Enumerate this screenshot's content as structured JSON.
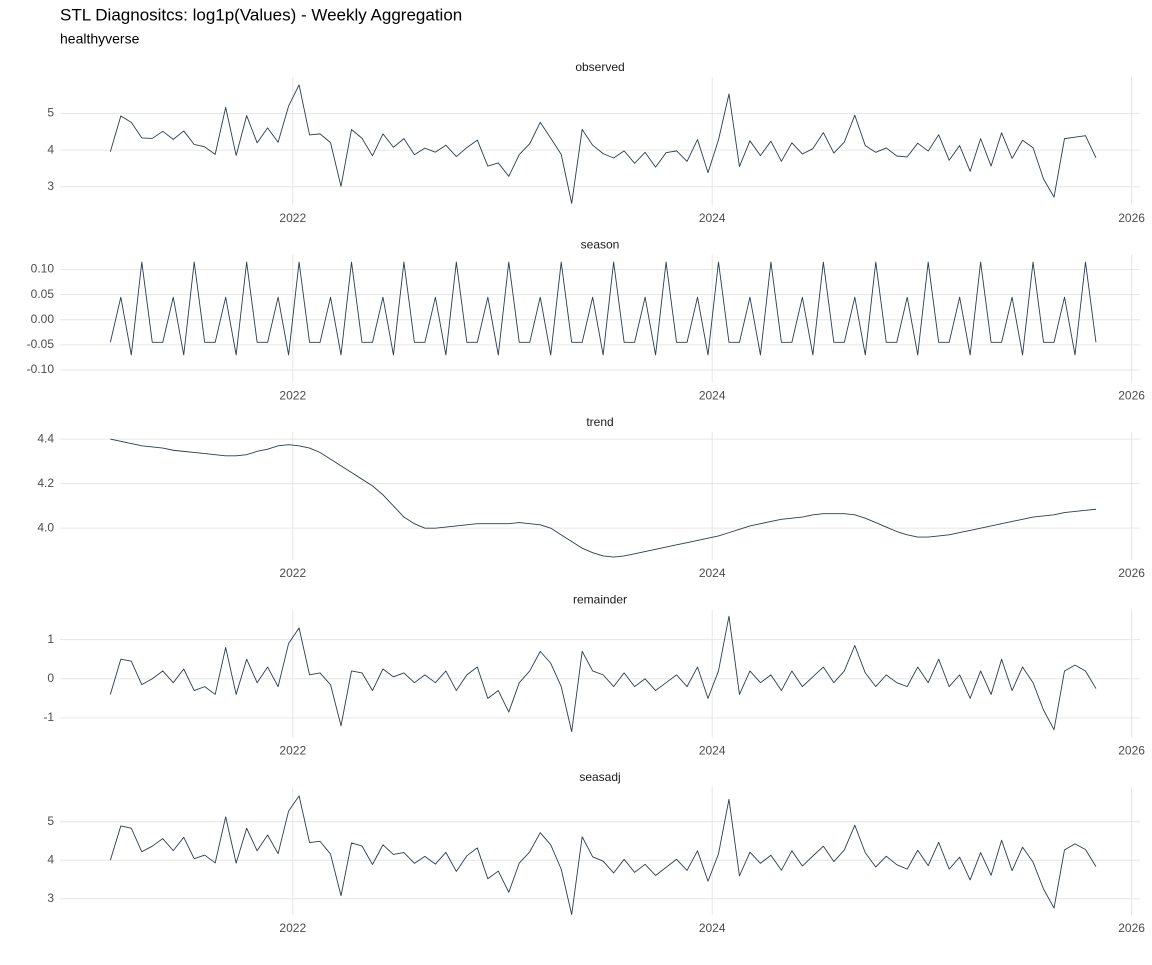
{
  "title": "STL Diagnositcs: log1p(Values) - Weekly Aggregation",
  "subtitle": "healthyverse",
  "chart_data": [
    {
      "type": "line",
      "title": "observed",
      "color": "#2c3e50",
      "grid": true,
      "xlim": [
        2020.89,
        2026.04
      ],
      "xticks": [
        2022,
        2024,
        2026
      ],
      "ylim": [
        2.5,
        6.0
      ],
      "yticks": [
        3,
        4,
        5
      ],
      "x": [
        2021.13,
        2021.18,
        2021.23,
        2021.28,
        2021.33,
        2021.38,
        2021.43,
        2021.48,
        2021.53,
        2021.58,
        2021.63,
        2021.68,
        2021.73,
        2021.78,
        2021.83,
        2021.88,
        2021.93,
        2021.98,
        2022.03,
        2022.08,
        2022.13,
        2022.18,
        2022.23,
        2022.28,
        2022.33,
        2022.38,
        2022.43,
        2022.48,
        2022.53,
        2022.58,
        2022.63,
        2022.68,
        2022.73,
        2022.78,
        2022.83,
        2022.88,
        2022.93,
        2022.98,
        2023.03,
        2023.08,
        2023.13,
        2023.18,
        2023.23,
        2023.28,
        2023.33,
        2023.38,
        2023.43,
        2023.48,
        2023.53,
        2023.58,
        2023.63,
        2023.68,
        2023.73,
        2023.78,
        2023.83,
        2023.88,
        2023.93,
        2023.98,
        2024.03,
        2024.08,
        2024.13,
        2024.18,
        2024.23,
        2024.28,
        2024.33,
        2024.38,
        2024.43,
        2024.48,
        2024.53,
        2024.58,
        2024.63,
        2024.68,
        2024.73,
        2024.78,
        2024.83,
        2024.88,
        2024.93,
        2024.98,
        2025.03,
        2025.08,
        2025.13,
        2025.18,
        2025.23,
        2025.28,
        2025.33,
        2025.38,
        2025.43,
        2025.48,
        2025.53,
        2025.58,
        2025.63,
        2025.68,
        2025.73,
        2025.78,
        2025.83
      ],
      "values": [
        3.955,
        4.935,
        4.76,
        4.335,
        4.32,
        4.515,
        4.295,
        4.525,
        4.155,
        4.09,
        3.885,
        5.17,
        3.855,
        4.945,
        4.2,
        4.61,
        4.215,
        5.205,
        5.785,
        4.415,
        4.445,
        4.205,
        3.01,
        4.565,
        4.325,
        3.845,
        4.445,
        4.08,
        4.315,
        3.875,
        4.055,
        3.945,
        4.135,
        3.825,
        4.07,
        4.275,
        3.565,
        3.65,
        3.285,
        3.88,
        4.175,
        4.76,
        4.33,
        3.885,
        2.545,
        4.565,
        4.135,
        3.905,
        3.785,
        3.98,
        3.64,
        3.94,
        3.535,
        3.93,
        3.98,
        3.69,
        4.29,
        3.385,
        4.28,
        5.535,
        3.55,
        4.255,
        3.85,
        4.245,
        3.695,
        4.2,
        3.895,
        4.04,
        4.48,
        3.92,
        4.22,
        4.955,
        4.125,
        3.94,
        4.06,
        3.84,
        3.815,
        4.19,
        3.975,
        4.42,
        3.725,
        4.125,
        3.42,
        4.315,
        3.565,
        4.475,
        3.775,
        4.27,
        4.065,
        3.21,
        2.715,
        4.315,
        4.355,
        4.395,
        3.79
      ]
    },
    {
      "type": "line",
      "title": "season",
      "color": "#2c3e50",
      "grid": true,
      "xlim": [
        2020.89,
        2026.04
      ],
      "xticks": [
        2022,
        2024,
        2026
      ],
      "ylim": [
        -0.125,
        0.13
      ],
      "yticks": [
        {
          "value": -0.1,
          "label": "-0.10"
        },
        -0.05,
        {
          "value": 0,
          "label": "0.00"
        },
        0.05,
        {
          "value": 0.1,
          "label": "0.10"
        }
      ],
      "x": [
        2021.13,
        2021.18,
        2021.23,
        2021.28,
        2021.33,
        2021.38,
        2021.43,
        2021.48,
        2021.53,
        2021.58,
        2021.63,
        2021.68,
        2021.73,
        2021.78,
        2021.83,
        2021.88,
        2021.93,
        2021.98,
        2022.03,
        2022.08,
        2022.13,
        2022.18,
        2022.23,
        2022.28,
        2022.33,
        2022.38,
        2022.43,
        2022.48,
        2022.53,
        2022.58,
        2022.63,
        2022.68,
        2022.73,
        2022.78,
        2022.83,
        2022.88,
        2022.93,
        2022.98,
        2023.03,
        2023.08,
        2023.13,
        2023.18,
        2023.23,
        2023.28,
        2023.33,
        2023.38,
        2023.43,
        2023.48,
        2023.53,
        2023.58,
        2023.63,
        2023.68,
        2023.73,
        2023.78,
        2023.83,
        2023.88,
        2023.93,
        2023.98,
        2024.03,
        2024.08,
        2024.13,
        2024.18,
        2024.23,
        2024.28,
        2024.33,
        2024.38,
        2024.43,
        2024.48,
        2024.53,
        2024.58,
        2024.63,
        2024.68,
        2024.73,
        2024.78,
        2024.83,
        2024.88,
        2024.93,
        2024.98,
        2025.03,
        2025.08,
        2025.13,
        2025.18,
        2025.23,
        2025.28,
        2025.33,
        2025.38,
        2025.43,
        2025.48,
        2025.53,
        2025.58,
        2025.63,
        2025.68,
        2025.73,
        2025.78,
        2025.83
      ],
      "values": [
        -0.045,
        0.045,
        -0.07,
        0.115,
        -0.045,
        -0.045,
        0.045,
        -0.07,
        0.115,
        -0.045,
        -0.045,
        0.045,
        -0.07,
        0.115,
        -0.045,
        -0.045,
        0.045,
        -0.07,
        0.115,
        -0.045,
        -0.045,
        0.045,
        -0.07,
        0.115,
        -0.045,
        -0.045,
        0.045,
        -0.07,
        0.115,
        -0.045,
        -0.045,
        0.045,
        -0.07,
        0.115,
        -0.045,
        -0.045,
        0.045,
        -0.07,
        0.115,
        -0.045,
        -0.045,
        0.045,
        -0.07,
        0.115,
        -0.045,
        -0.045,
        0.045,
        -0.07,
        0.115,
        -0.045,
        -0.045,
        0.045,
        -0.07,
        0.115,
        -0.045,
        -0.045,
        0.045,
        -0.07,
        0.115,
        -0.045,
        -0.045,
        0.045,
        -0.07,
        0.115,
        -0.045,
        -0.045,
        0.045,
        -0.07,
        0.115,
        -0.045,
        -0.045,
        0.045,
        -0.07,
        0.115,
        -0.045,
        -0.045,
        0.045,
        -0.07,
        0.115,
        -0.045,
        -0.045,
        0.045,
        -0.07,
        0.115,
        -0.045,
        -0.045,
        0.045,
        -0.07,
        0.115,
        -0.045,
        -0.045,
        0.045,
        -0.07,
        0.115,
        -0.045
      ]
    },
    {
      "type": "line",
      "title": "trend",
      "color": "#2c3e50",
      "grid": true,
      "xlim": [
        2020.89,
        2026.04
      ],
      "xticks": [
        2022,
        2024,
        2026
      ],
      "ylim": [
        3.857,
        4.432
      ],
      "yticks": [
        {
          "value": 4.0,
          "label": "4.0"
        },
        4.2,
        4.4
      ],
      "x": [
        2021.13,
        2021.18,
        2021.23,
        2021.28,
        2021.33,
        2021.38,
        2021.43,
        2021.48,
        2021.53,
        2021.58,
        2021.63,
        2021.68,
        2021.73,
        2021.78,
        2021.83,
        2021.88,
        2021.93,
        2021.98,
        2022.03,
        2022.08,
        2022.13,
        2022.18,
        2022.23,
        2022.28,
        2022.33,
        2022.38,
        2022.43,
        2022.48,
        2022.53,
        2022.58,
        2022.63,
        2022.68,
        2022.73,
        2022.78,
        2022.83,
        2022.88,
        2022.93,
        2022.98,
        2023.03,
        2023.08,
        2023.13,
        2023.18,
        2023.23,
        2023.28,
        2023.33,
        2023.38,
        2023.43,
        2023.48,
        2023.53,
        2023.58,
        2023.63,
        2023.68,
        2023.73,
        2023.78,
        2023.83,
        2023.88,
        2023.93,
        2023.98,
        2024.03,
        2024.08,
        2024.13,
        2024.18,
        2024.23,
        2024.28,
        2024.33,
        2024.38,
        2024.43,
        2024.48,
        2024.53,
        2024.58,
        2024.63,
        2024.68,
        2024.73,
        2024.78,
        2024.83,
        2024.88,
        2024.93,
        2024.98,
        2025.03,
        2025.08,
        2025.13,
        2025.18,
        2025.23,
        2025.28,
        2025.33,
        2025.38,
        2025.43,
        2025.48,
        2025.53,
        2025.58,
        2025.63,
        2025.68,
        2025.73,
        2025.78,
        2025.83
      ],
      "values": [
        4.4,
        4.39,
        4.38,
        4.37,
        4.365,
        4.36,
        4.35,
        4.345,
        4.34,
        4.335,
        4.33,
        4.325,
        4.325,
        4.33,
        4.345,
        4.355,
        4.37,
        4.375,
        4.37,
        4.36,
        4.34,
        4.31,
        4.28,
        4.25,
        4.22,
        4.19,
        4.15,
        4.1,
        4.05,
        4.02,
        4.0,
        4.0,
        4.005,
        4.01,
        4.015,
        4.02,
        4.02,
        4.02,
        4.02,
        4.025,
        4.02,
        4.015,
        4.0,
        3.97,
        3.94,
        3.91,
        3.89,
        3.875,
        3.87,
        3.875,
        3.885,
        3.895,
        3.905,
        3.915,
        3.925,
        3.935,
        3.945,
        3.955,
        3.965,
        3.98,
        3.995,
        4.01,
        4.02,
        4.03,
        4.04,
        4.045,
        4.05,
        4.06,
        4.065,
        4.065,
        4.065,
        4.06,
        4.045,
        4.025,
        4.005,
        3.985,
        3.97,
        3.96,
        3.96,
        3.965,
        3.97,
        3.98,
        3.99,
        4.0,
        4.01,
        4.02,
        4.03,
        4.04,
        4.05,
        4.055,
        4.06,
        4.07,
        4.075,
        4.08,
        4.085
      ]
    },
    {
      "type": "line",
      "title": "remainder",
      "color": "#2c3e50",
      "grid": true,
      "xlim": [
        2020.89,
        2026.04
      ],
      "xticks": [
        2022,
        2024,
        2026
      ],
      "ylim": [
        -1.5,
        1.77
      ],
      "yticks": [
        -1,
        0,
        1
      ],
      "x": [
        2021.13,
        2021.18,
        2021.23,
        2021.28,
        2021.33,
        2021.38,
        2021.43,
        2021.48,
        2021.53,
        2021.58,
        2021.63,
        2021.68,
        2021.73,
        2021.78,
        2021.83,
        2021.88,
        2021.93,
        2021.98,
        2022.03,
        2022.08,
        2022.13,
        2022.18,
        2022.23,
        2022.28,
        2022.33,
        2022.38,
        2022.43,
        2022.48,
        2022.53,
        2022.58,
        2022.63,
        2022.68,
        2022.73,
        2022.78,
        2022.83,
        2022.88,
        2022.93,
        2022.98,
        2023.03,
        2023.08,
        2023.13,
        2023.18,
        2023.23,
        2023.28,
        2023.33,
        2023.38,
        2023.43,
        2023.48,
        2023.53,
        2023.58,
        2023.63,
        2023.68,
        2023.73,
        2023.78,
        2023.83,
        2023.88,
        2023.93,
        2023.98,
        2024.03,
        2024.08,
        2024.13,
        2024.18,
        2024.23,
        2024.28,
        2024.33,
        2024.38,
        2024.43,
        2024.48,
        2024.53,
        2024.58,
        2024.63,
        2024.68,
        2024.73,
        2024.78,
        2024.83,
        2024.88,
        2024.93,
        2024.98,
        2025.03,
        2025.08,
        2025.13,
        2025.18,
        2025.23,
        2025.28,
        2025.33,
        2025.38,
        2025.43,
        2025.48,
        2025.53,
        2025.58,
        2025.63,
        2025.68,
        2025.73,
        2025.78,
        2025.83
      ],
      "values": [
        -0.4,
        0.5,
        0.45,
        -0.15,
        0.0,
        0.2,
        -0.1,
        0.25,
        -0.3,
        -0.2,
        -0.4,
        0.8,
        -0.4,
        0.5,
        -0.1,
        0.3,
        -0.2,
        0.9,
        1.3,
        0.1,
        0.15,
        -0.15,
        -1.2,
        0.2,
        0.15,
        -0.3,
        0.25,
        0.05,
        0.15,
        -0.1,
        0.1,
        -0.1,
        0.2,
        -0.3,
        0.1,
        0.3,
        -0.5,
        -0.3,
        -0.85,
        -0.1,
        0.2,
        0.7,
        0.4,
        -0.2,
        -1.35,
        0.7,
        0.2,
        0.1,
        -0.2,
        0.15,
        -0.2,
        0.0,
        -0.3,
        -0.1,
        0.1,
        -0.2,
        0.3,
        -0.5,
        0.2,
        1.6,
        -0.4,
        0.2,
        -0.1,
        0.1,
        -0.3,
        0.2,
        -0.2,
        0.05,
        0.3,
        -0.1,
        0.2,
        0.85,
        0.15,
        -0.2,
        0.1,
        -0.1,
        -0.2,
        0.3,
        -0.1,
        0.5,
        -0.2,
        0.1,
        -0.5,
        0.2,
        -0.4,
        0.5,
        -0.3,
        0.3,
        -0.1,
        -0.8,
        -1.3,
        0.2,
        0.35,
        0.2,
        -0.25
      ]
    },
    {
      "type": "line",
      "title": "seasadj",
      "color": "#2c3e50",
      "grid": true,
      "xlim": [
        2020.89,
        2026.04
      ],
      "xticks": [
        2022,
        2024,
        2026
      ],
      "ylim": [
        2.58,
        5.9
      ],
      "yticks": [
        3,
        4,
        5
      ],
      "x": [
        2021.13,
        2021.18,
        2021.23,
        2021.28,
        2021.33,
        2021.38,
        2021.43,
        2021.48,
        2021.53,
        2021.58,
        2021.63,
        2021.68,
        2021.73,
        2021.78,
        2021.83,
        2021.88,
        2021.93,
        2021.98,
        2022.03,
        2022.08,
        2022.13,
        2022.18,
        2022.23,
        2022.28,
        2022.33,
        2022.38,
        2022.43,
        2022.48,
        2022.53,
        2022.58,
        2022.63,
        2022.68,
        2022.73,
        2022.78,
        2022.83,
        2022.88,
        2022.93,
        2022.98,
        2023.03,
        2023.08,
        2023.13,
        2023.18,
        2023.23,
        2023.28,
        2023.33,
        2023.38,
        2023.43,
        2023.48,
        2023.53,
        2023.58,
        2023.63,
        2023.68,
        2023.73,
        2023.78,
        2023.83,
        2023.88,
        2023.93,
        2023.98,
        2024.03,
        2024.08,
        2024.13,
        2024.18,
        2024.23,
        2024.28,
        2024.33,
        2024.38,
        2024.43,
        2024.48,
        2024.53,
        2024.58,
        2024.63,
        2024.68,
        2024.73,
        2024.78,
        2024.83,
        2024.88,
        2024.93,
        2024.98,
        2025.03,
        2025.08,
        2025.13,
        2025.18,
        2025.23,
        2025.28,
        2025.33,
        2025.38,
        2025.43,
        2025.48,
        2025.53,
        2025.58,
        2025.63,
        2025.68,
        2025.73,
        2025.78,
        2025.83
      ],
      "values": [
        4.0,
        4.89,
        4.83,
        4.22,
        4.365,
        4.56,
        4.25,
        4.595,
        4.04,
        4.135,
        3.93,
        5.125,
        3.925,
        4.83,
        4.245,
        4.655,
        4.17,
        5.275,
        5.67,
        4.46,
        4.49,
        4.16,
        3.08,
        4.45,
        4.37,
        3.89,
        4.4,
        4.15,
        4.2,
        3.92,
        4.1,
        3.9,
        4.205,
        3.71,
        4.115,
        4.32,
        3.52,
        3.72,
        3.17,
        3.925,
        4.22,
        4.715,
        4.4,
        3.77,
        2.59,
        4.61,
        4.09,
        3.975,
        3.67,
        4.025,
        3.685,
        3.895,
        3.605,
        3.815,
        4.025,
        3.735,
        4.245,
        3.455,
        4.165,
        5.58,
        3.595,
        4.21,
        3.92,
        4.13,
        3.74,
        4.245,
        3.85,
        4.11,
        4.365,
        3.965,
        4.265,
        4.91,
        4.195,
        3.825,
        4.105,
        3.885,
        3.77,
        4.26,
        3.86,
        4.465,
        3.77,
        4.08,
        3.49,
        4.2,
        3.61,
        4.52,
        3.73,
        4.34,
        3.95,
        3.255,
        2.76,
        4.27,
        4.425,
        4.28,
        3.835
      ]
    }
  ]
}
